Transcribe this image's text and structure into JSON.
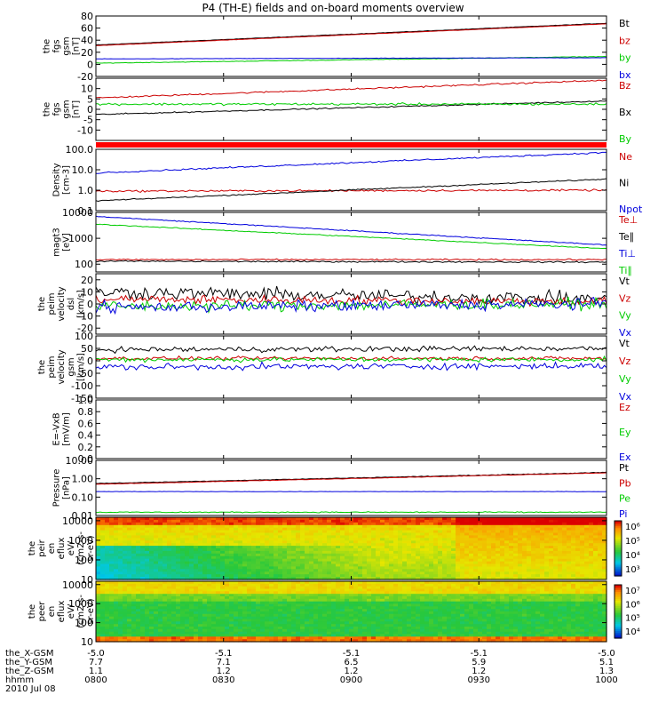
{
  "title": "P4 (TH-E) fields and on-board moments overview",
  "colors": {
    "black": "#000000",
    "red": "#cc0000",
    "green": "#00cc00",
    "blue": "#0000dd",
    "bar": "#ff0000"
  },
  "chart_data": [
    {
      "id": "fgs-gsm-1",
      "type": "line",
      "ylabel": [
        "the",
        "fgs",
        "gsm",
        "[nT]"
      ],
      "ylim": [
        -20,
        80
      ],
      "log": false,
      "ticks": [
        "80",
        "60",
        "40",
        "20",
        "0",
        "-20"
      ],
      "tick_values": [
        80,
        60,
        40,
        20,
        0,
        -20
      ],
      "series": [
        {
          "name": "Bt",
          "color": "black",
          "start": 32,
          "end": 68,
          "noise": 0.4
        },
        {
          "name": "bz",
          "color": "red",
          "start": 31,
          "end": 67,
          "noise": 0.3
        },
        {
          "name": "by",
          "color": "green",
          "start": 2,
          "end": 13,
          "noise": 0.5
        },
        {
          "name": "bx",
          "color": "blue",
          "start": 9,
          "end": 11,
          "noise": 0.3
        }
      ]
    },
    {
      "id": "fgs-gsm-2",
      "type": "line",
      "ylabel": [
        "the",
        "fgs",
        "gsm",
        "[nT]"
      ],
      "ylim": [
        -15,
        15
      ],
      "log": false,
      "ticks": [
        "10",
        "5",
        "0",
        "-5",
        "-10"
      ],
      "tick_values": [
        10,
        5,
        0,
        -5,
        -10
      ],
      "series": [
        {
          "name": "Bz",
          "color": "red",
          "start": 5.5,
          "end": 14,
          "noise": 0.4
        },
        {
          "name": "Bx",
          "color": "black",
          "start": -2.5,
          "end": 4,
          "noise": 0.3
        },
        {
          "name": "By",
          "color": "green",
          "start": 2.5,
          "end": 2.5,
          "noise": 0.6
        }
      ]
    },
    {
      "id": "density",
      "type": "line",
      "ylabel": [
        "Density",
        "[cm-3]"
      ],
      "ylim": [
        0.1,
        100
      ],
      "log": true,
      "ticks": [
        "100.0",
        "10.0",
        "1.0",
        "0.1"
      ],
      "tick_values": [
        100,
        10,
        1,
        0.1
      ],
      "series": [
        {
          "name": "Ne",
          "color": "red",
          "start": 0.9,
          "end": 1.0,
          "noise": 0.05
        },
        {
          "name": "Ni",
          "color": "black",
          "start": 0.3,
          "end": 3.5,
          "noise": 0.03
        },
        {
          "name": "Npot",
          "color": "blue",
          "start": 7,
          "end": 70,
          "noise": 0.04
        }
      ]
    },
    {
      "id": "magt3",
      "type": "line",
      "ylabel": [
        "magt3",
        "[eV]"
      ],
      "ylim": [
        50,
        10000
      ],
      "log": true,
      "ticks": [
        "10000",
        "1000",
        "100"
      ],
      "tick_values": [
        10000,
        1000,
        100
      ],
      "series": [
        {
          "name": "Te⊥",
          "color": "red",
          "start": 150,
          "end": 150,
          "noise": 0.03
        },
        {
          "name": "Te∥",
          "color": "black",
          "start": 130,
          "end": 120,
          "noise": 0.03
        },
        {
          "name": "Ti⊥",
          "color": "blue",
          "start": 7000,
          "end": 550,
          "noise": 0.02
        },
        {
          "name": "Ti∥",
          "color": "green",
          "start": 3500,
          "end": 400,
          "noise": 0.02
        }
      ]
    },
    {
      "id": "peim-velocity-dsl",
      "type": "line",
      "ylabel": [
        "the",
        "peim",
        "velocity",
        "dsl",
        "[km/s]"
      ],
      "ylim": [
        -25,
        25
      ],
      "log": false,
      "ticks": [
        "20",
        "10",
        "0",
        "-10",
        "-20"
      ],
      "tick_values": [
        20,
        10,
        0,
        -10,
        -20
      ],
      "series": [
        {
          "name": "Vt",
          "color": "black",
          "start": 10,
          "end": 4,
          "noise": 6
        },
        {
          "name": "Vz",
          "color": "red",
          "start": 4,
          "end": 2,
          "noise": 4
        },
        {
          "name": "Vy",
          "color": "green",
          "start": -2,
          "end": 0,
          "noise": 5
        },
        {
          "name": "Vx",
          "color": "blue",
          "start": -3,
          "end": 0,
          "noise": 5
        }
      ]
    },
    {
      "id": "peim-velocity-gsm",
      "type": "line",
      "ylabel": [
        "the",
        "peim",
        "velocity",
        "gsm",
        "[km/s]"
      ],
      "ylim": [
        -150,
        100
      ],
      "log": false,
      "ticks": [
        "100",
        "50",
        "0",
        "-50",
        "-100",
        "-150"
      ],
      "tick_values": [
        100,
        50,
        0,
        -50,
        -100,
        -150
      ],
      "series": [
        {
          "name": "Vt",
          "color": "black",
          "start": 45,
          "end": 50,
          "noise": 12
        },
        {
          "name": "Vz",
          "color": "red",
          "start": 10,
          "end": 10,
          "noise": 8
        },
        {
          "name": "Vy",
          "color": "green",
          "start": 5,
          "end": 5,
          "noise": 10
        },
        {
          "name": "Vx",
          "color": "blue",
          "start": -25,
          "end": -20,
          "noise": 14
        }
      ]
    },
    {
      "id": "e-vxb",
      "type": "line",
      "ylabel": [
        "E=-VxB",
        "[mV/m]"
      ],
      "ylim": [
        0,
        1
      ],
      "log": false,
      "ticks": [
        "1.0",
        "0.8",
        "0.6",
        "0.4",
        "0.2",
        "0.0"
      ],
      "tick_values": [
        1.0,
        0.8,
        0.6,
        0.4,
        0.2,
        0.0
      ],
      "series": [
        {
          "name": "Ez",
          "color": "red",
          "start": null,
          "end": null,
          "noise": 0
        },
        {
          "name": "Ey",
          "color": "green",
          "start": null,
          "end": null,
          "noise": 0
        },
        {
          "name": "Ex",
          "color": "blue",
          "start": null,
          "end": null,
          "noise": 0
        }
      ]
    },
    {
      "id": "pressure",
      "type": "line",
      "ylabel": [
        "Pressure",
        "[nPa]"
      ],
      "ylim": [
        0.01,
        10
      ],
      "log": true,
      "ticks": [
        "10.00",
        "1.00",
        "0.10",
        "0.01"
      ],
      "tick_values": [
        10,
        1,
        0.1,
        0.01
      ],
      "series": [
        {
          "name": "Pt",
          "color": "black",
          "start": 0.55,
          "end": 2.2,
          "noise": 0.02
        },
        {
          "name": "Pb",
          "color": "red",
          "start": 0.5,
          "end": 2.1,
          "noise": 0.015
        },
        {
          "name": "Pe",
          "color": "green",
          "start": 0.015,
          "end": 0.015,
          "noise": 0.03
        },
        {
          "name": "Pi",
          "color": "blue",
          "start": 0.2,
          "end": 0.2,
          "noise": 0.01
        }
      ]
    },
    {
      "id": "peir-en-eflux",
      "type": "heatmap",
      "ylabel": [
        "the",
        "peir",
        "en",
        "eflux",
        "eV/",
        "(cm2-s-",
        "sr-eV)"
      ],
      "ylim": [
        10,
        15000
      ],
      "log": true,
      "ticks": [
        "10000",
        "1000",
        "100",
        "10"
      ],
      "tick_values": [
        10000,
        1000,
        100,
        10
      ],
      "colorbar": [
        "10⁶",
        "10⁵",
        "10⁴",
        "10³"
      ]
    },
    {
      "id": "peer-en-eflux",
      "type": "heatmap",
      "ylabel": [
        "the",
        "peer",
        "en",
        "eflux",
        "eV/",
        "(cm2-s-",
        "sr-eV)"
      ],
      "ylim": [
        10,
        15000
      ],
      "log": true,
      "ticks": [
        "10000",
        "1000",
        "100",
        "10"
      ],
      "tick_values": [
        10000,
        1000,
        100,
        10
      ],
      "colorbar": [
        "10⁷",
        "10⁶",
        "10⁵",
        "10⁴"
      ]
    }
  ],
  "xaxis": {
    "rows": [
      {
        "label": "the_X-GSM",
        "values": [
          "-5.0",
          "-5.1",
          "-5.1",
          "-5.1",
          "-5.0"
        ]
      },
      {
        "label": "the_Y-GSM",
        "values": [
          "7.7",
          "7.1",
          "6.5",
          "5.9",
          "5.1"
        ]
      },
      {
        "label": "the_Z-GSM",
        "values": [
          "1.1",
          "1.2",
          "1.2",
          "1.2",
          "1.3"
        ]
      },
      {
        "label": "hhmm",
        "values": [
          "0800",
          "0830",
          "0900",
          "0930",
          "1000"
        ]
      }
    ],
    "date": "2010 Jul 08"
  }
}
